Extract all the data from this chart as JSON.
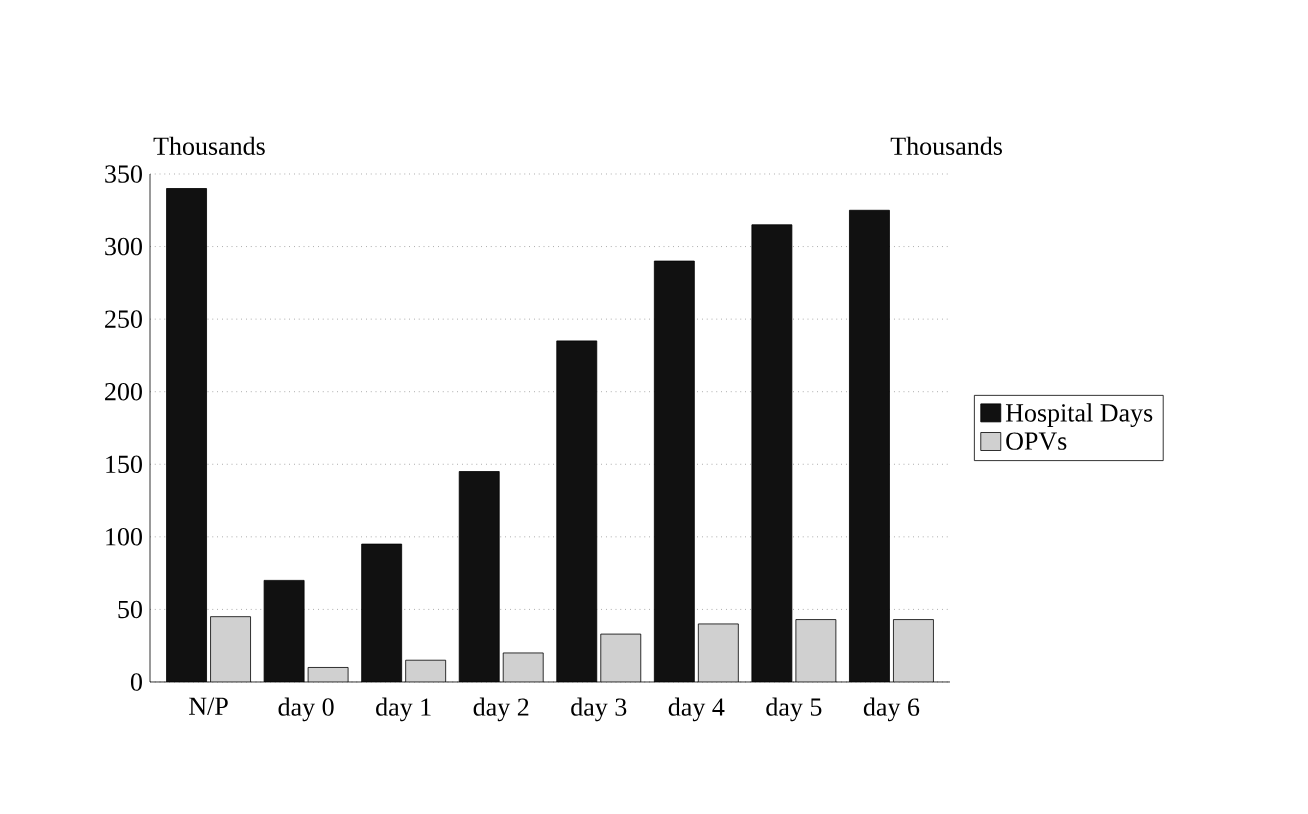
{
  "chart_data": {
    "type": "bar",
    "categories": [
      "N/P",
      "day 0",
      "day 1",
      "day 2",
      "day 3",
      "day 4",
      "day 5",
      "day 6"
    ],
    "series": [
      {
        "name": "Hospital Days",
        "color": "#111111",
        "values": [
          340,
          70,
          95,
          145,
          235,
          290,
          315,
          325
        ]
      },
      {
        "name": "OPVs",
        "color": "#d0d0d0",
        "values": [
          45,
          10,
          15,
          20,
          33,
          40,
          43,
          43
        ]
      }
    ],
    "ylim": [
      0,
      350
    ],
    "yticks": [
      0,
      50,
      100,
      150,
      200,
      250,
      300,
      350
    ],
    "grid": "y",
    "legend": "right",
    "annotations": [
      "Thousands",
      "Thousands"
    ]
  }
}
